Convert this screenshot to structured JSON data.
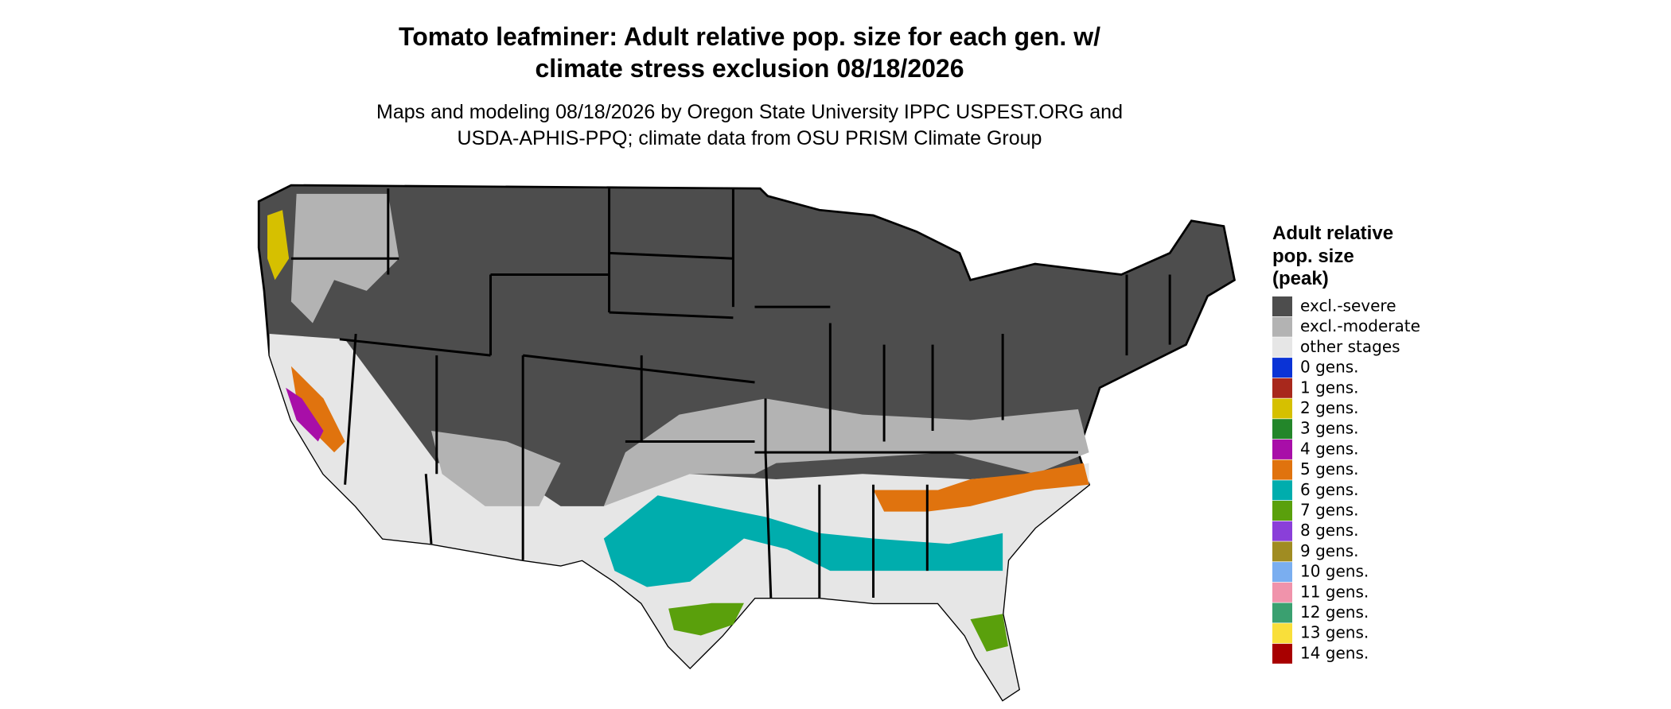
{
  "header": {
    "title_lines": [
      "Tomato leafminer: Adult relative pop. size for each gen. w/",
      "climate stress exclusion 08/18/2026"
    ],
    "subtitle_lines": [
      "Maps and modeling 08/18/2026 by Oregon State University IPPC USPEST.ORG and",
      "USDA-APHIS-PPQ; climate data from OSU PRISM Climate Group"
    ]
  },
  "legend": {
    "title_lines": [
      "Adult relative",
      "pop. size",
      "(peak)"
    ],
    "items": [
      {
        "label": "excl.-severe",
        "color": "#4d4d4d"
      },
      {
        "label": "excl.-moderate",
        "color": "#b3b3b3"
      },
      {
        "label": "other stages",
        "color": "#e6e6e6"
      },
      {
        "label": "0 gens.",
        "color": "#0a33d6"
      },
      {
        "label": "1 gens.",
        "color": "#a8281c"
      },
      {
        "label": "2 gens.",
        "color": "#d6c000"
      },
      {
        "label": "3 gens.",
        "color": "#23862a"
      },
      {
        "label": "4 gens.",
        "color": "#a80ea8"
      },
      {
        "label": "5 gens.",
        "color": "#e0730e"
      },
      {
        "label": "6 gens.",
        "color": "#00adad"
      },
      {
        "label": "7 gens.",
        "color": "#5aa00c"
      },
      {
        "label": "8 gens.",
        "color": "#8a3fd9"
      },
      {
        "label": "9 gens.",
        "color": "#a08c22"
      },
      {
        "label": "10 gens.",
        "color": "#7aaef0"
      },
      {
        "label": "11 gens.",
        "color": "#f093ab"
      },
      {
        "label": "12 gens.",
        "color": "#3aa070"
      },
      {
        "label": "13 gens.",
        "color": "#f9df3a"
      },
      {
        "label": "14 gens.",
        "color": "#a80000"
      }
    ]
  }
}
